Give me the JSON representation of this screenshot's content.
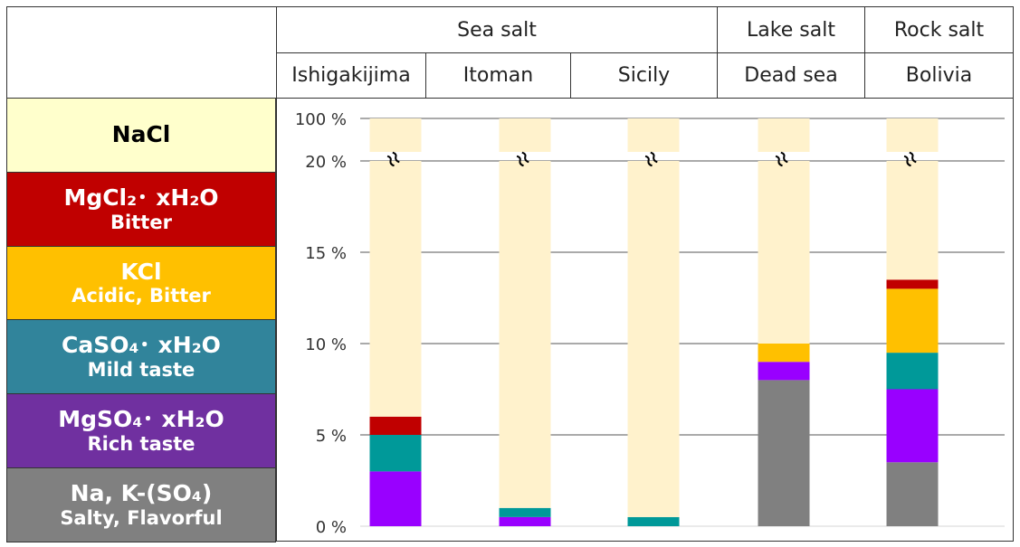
{
  "header": {
    "groups": [
      "Sea salt",
      "Lake salt",
      "Rock salt"
    ],
    "sites": [
      "Ishigakijima",
      "Itoman",
      "Sicily",
      "Dead sea",
      "Bolivia"
    ]
  },
  "legend": [
    {
      "name": "NaCl",
      "taste": "",
      "color": "#ffffcc",
      "text": "#000000"
    },
    {
      "name": "MgCl₂･ xH₂O",
      "taste": "Bitter",
      "color": "#c00000",
      "text": "#ffffff"
    },
    {
      "name": "KCl",
      "taste": "Acidic, Bitter",
      "color": "#ffc000",
      "text": "#ffffff"
    },
    {
      "name": "CaSO₄･ xH₂O",
      "taste": "Mild taste",
      "color": "#31849b",
      "text": "#ffffff"
    },
    {
      "name": "MgSO₄･ xH₂O",
      "taste": "Rich taste",
      "color": "#7030a0",
      "text": "#ffffff"
    },
    {
      "name": "Na, K-(SO₄)",
      "taste": "Salty,  Flavorful",
      "color": "#808080",
      "text": "#ffffff"
    }
  ],
  "chart_data": {
    "type": "bar",
    "stacked": true,
    "axis_break": "20 % to 100 %",
    "categories": [
      "Ishigakijima",
      "Itoman",
      "Sicily",
      "Dead sea",
      "Bolivia"
    ],
    "yticks": [
      "0 %",
      "5 %",
      "10 %",
      "15 %",
      "20 %",
      "100 %"
    ],
    "ylim": [
      0,
      100
    ],
    "grid": true,
    "series": [
      {
        "name": "Na, K-(SO₄)",
        "color": "#808080",
        "values": [
          0,
          0,
          0,
          8,
          3.5
        ]
      },
      {
        "name": "MgSO₄･ xH₂O",
        "color": "#9900ff",
        "values": [
          3,
          0.5,
          0,
          1,
          4
        ]
      },
      {
        "name": "CaSO₄･ xH₂O",
        "color": "#009999",
        "values": [
          2,
          0.5,
          0.5,
          0,
          2
        ]
      },
      {
        "name": "KCl",
        "color": "#ffc000",
        "values": [
          0,
          0,
          0,
          1,
          3.5
        ]
      },
      {
        "name": "MgCl₂･ xH₂O",
        "color": "#c00000",
        "values": [
          1,
          0,
          0,
          0,
          0.5
        ]
      },
      {
        "name": "NaCl",
        "color": "#fff2cc",
        "values": [
          94,
          99,
          99.5,
          90,
          86.5
        ]
      }
    ]
  }
}
